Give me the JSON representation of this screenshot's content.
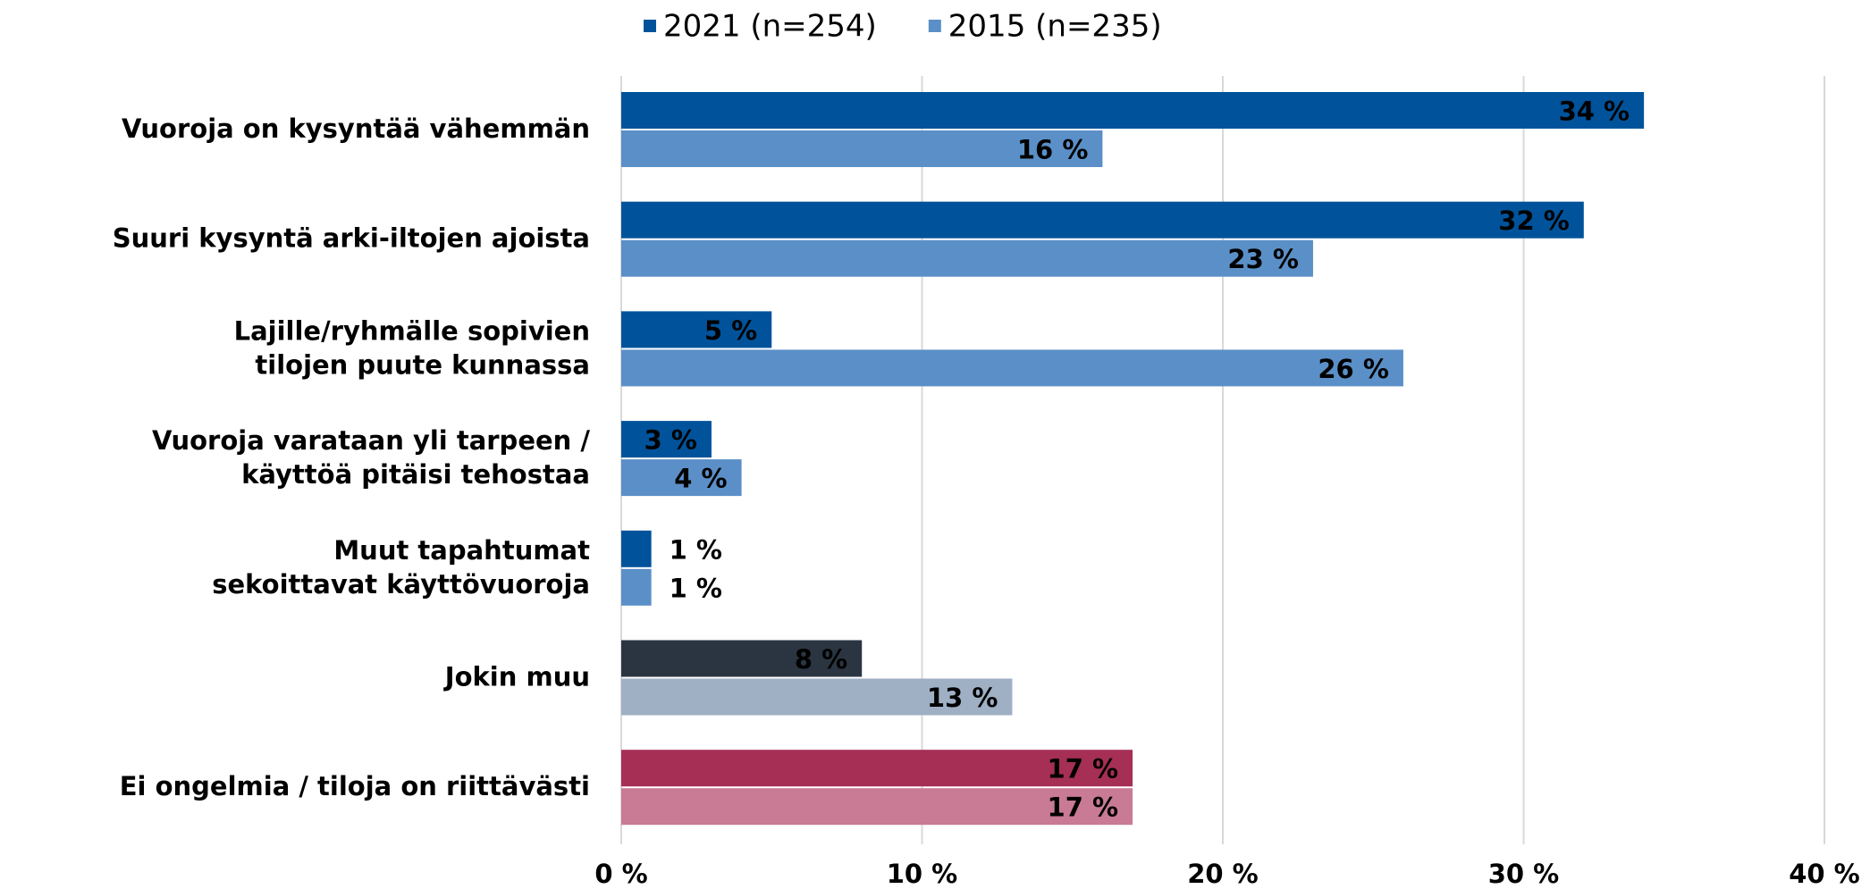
{
  "chart_data": {
    "type": "hbar",
    "categories": [
      "Vuoroja on kysyntää vähemmän",
      "Suuri kysyntä arki-iltojen ajoista",
      "Lajille/ryhmälle sopivien\ntilojen puute kunnassa",
      "Vuoroja varataan yli tarpeen /\nkäyttöä pitäisi tehostaa",
      "Muut tapahtumat\nsekoittavat käyttövuoroja",
      "Jokin muu",
      "Ei ongelmia / tiloja on riittävästi"
    ],
    "series": [
      {
        "name": "2021 (n=254)",
        "color": "#00539b",
        "label_color": "#ffffff",
        "colors": [
          "#00539b",
          "#00539b",
          "#00539b",
          "#00539b",
          "#00539b",
          "#2b3542",
          "#a52f55"
        ],
        "values": [
          34,
          32,
          5,
          3,
          1,
          8,
          17
        ],
        "value_labels": [
          "34 %",
          "32 %",
          "5 %",
          "3 %",
          "1 %",
          "8 %",
          "17 %"
        ]
      },
      {
        "name": "2015 (n=235)",
        "color": "#5b8fc7",
        "label_color": "#000000",
        "colors": [
          "#5b8fc7",
          "#5b8fc7",
          "#5b8fc7",
          "#5b8fc7",
          "#5b8fc7",
          "#9fb0c5",
          "#c97a94"
        ],
        "values": [
          16,
          23,
          26,
          4,
          1,
          13,
          17
        ],
        "value_labels": [
          "16 %",
          "23 %",
          "26 %",
          "4 %",
          "1 %",
          "13 %",
          "17 %"
        ]
      }
    ],
    "xlim": [
      0,
      40
    ],
    "xticks": [
      {
        "value": 0,
        "label": "0 %"
      },
      {
        "value": 10,
        "label": "10 %"
      },
      {
        "value": 20,
        "label": "20 %"
      },
      {
        "value": 30,
        "label": "30 %"
      },
      {
        "value": 40,
        "label": "40 %"
      }
    ],
    "grid": true,
    "legend": "top"
  }
}
